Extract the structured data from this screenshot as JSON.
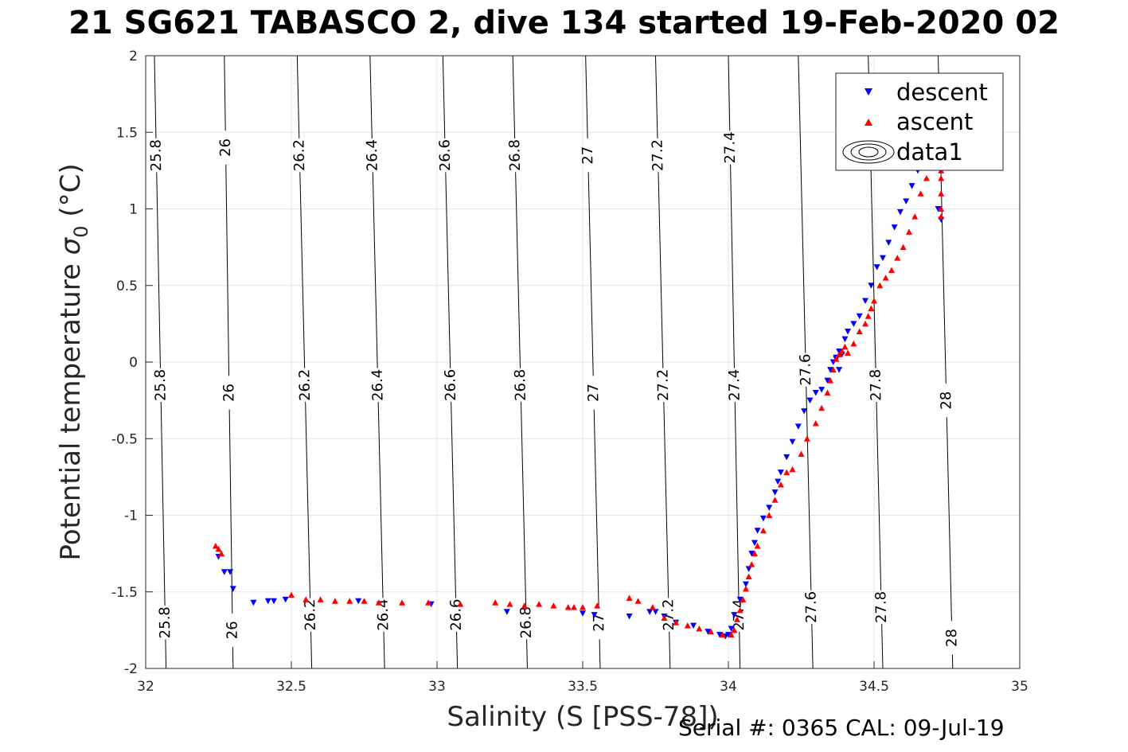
{
  "title": "21 SG621 TABASCO 2, dive 134 started 19-Feb-2020 02",
  "footer": "Serial #: 0365  CAL: 09-Jul-19",
  "chart_data": {
    "type": "scatter",
    "xlabel": "Salinity (S [PSS-78])",
    "ylabel_text": "Potential temperature ",
    "ylabel_symbol": "σ",
    "ylabel_subscript": "0",
    "ylabel_unit": " (°C)",
    "xlim": [
      32,
      35
    ],
    "ylim": [
      -2,
      2
    ],
    "xticks": [
      "32",
      "32.5",
      "33",
      "33.5",
      "34",
      "34.5",
      "35"
    ],
    "yticks": [
      "2",
      "1.5",
      "1",
      "0.5",
      "0",
      "-0.5",
      "-1",
      "-1.5",
      "-2"
    ],
    "grid": true,
    "legend": {
      "placement": "top-right",
      "entries": [
        {
          "name": "descent",
          "color": "#0000ff",
          "marker": "triangle-down"
        },
        {
          "name": "ascent",
          "color": "#ff0000",
          "marker": "triangle-up"
        },
        {
          "name": "data1",
          "color": "#000000",
          "marker": "contour"
        }
      ]
    },
    "contours": {
      "label": "data1",
      "lines": [
        {
          "sigma": "25.8",
          "x_at_ymin": 32.07,
          "x_at_ymax": 32.03,
          "label_ymids": [
            1.35,
            -0.15,
            -1.7
          ]
        },
        {
          "sigma": "26",
          "x_at_ymin": 32.3,
          "x_at_ymax": 32.27,
          "label_ymids": [
            1.4,
            -0.2,
            -1.75
          ]
        },
        {
          "sigma": "26.2",
          "x_at_ymin": 32.57,
          "x_at_ymax": 32.52,
          "label_ymids": [
            1.35,
            -0.15,
            -1.65
          ]
        },
        {
          "sigma": "26.4",
          "x_at_ymin": 32.82,
          "x_at_ymax": 32.77,
          "label_ymids": [
            1.35,
            -0.15,
            -1.65
          ]
        },
        {
          "sigma": "26.6",
          "x_at_ymin": 33.07,
          "x_at_ymax": 33.02,
          "label_ymids": [
            1.35,
            -0.15,
            -1.65
          ]
        },
        {
          "sigma": "26.8",
          "x_at_ymin": 33.31,
          "x_at_ymax": 33.26,
          "label_ymids": [
            1.35,
            -0.15,
            -1.7
          ]
        },
        {
          "sigma": "27",
          "x_at_ymin": 33.56,
          "x_at_ymax": 33.51,
          "label_ymids": [
            1.35,
            -0.2,
            -1.7
          ]
        },
        {
          "sigma": "27.2",
          "x_at_ymin": 33.8,
          "x_at_ymax": 33.75,
          "label_ymids": [
            1.35,
            -0.15,
            -1.65
          ]
        },
        {
          "sigma": "27.4",
          "x_at_ymin": 34.04,
          "x_at_ymax": 34.0,
          "label_ymids": [
            1.4,
            -0.15,
            -1.65
          ]
        },
        {
          "sigma": "27.6",
          "x_at_ymin": 34.29,
          "x_at_ymax": 34.24,
          "label_ymids": [
            -0.05,
            -1.6
          ]
        },
        {
          "sigma": "27.8",
          "x_at_ymin": 34.53,
          "x_at_ymax": 34.48,
          "label_ymids": [
            -0.15,
            -1.6
          ]
        },
        {
          "sigma": "28",
          "x_at_ymin": 34.77,
          "x_at_ymax": 34.72,
          "label_ymids": [
            1.35,
            -0.25,
            -1.8
          ]
        }
      ]
    },
    "series": [
      {
        "name": "descent",
        "color": "#0000ff",
        "x": [
          32.25,
          32.27,
          32.29,
          32.3,
          32.37,
          32.42,
          32.44,
          32.48,
          32.73,
          32.98,
          33.24,
          33.5,
          33.54,
          33.66,
          33.73,
          33.75,
          33.78,
          33.82,
          33.88,
          33.93,
          33.97,
          33.99,
          34.0,
          34.01,
          34.02,
          34.04,
          34.06,
          34.07,
          34.08,
          34.09,
          34.1,
          34.12,
          34.14,
          34.16,
          34.17,
          34.18,
          34.2,
          34.22,
          34.24,
          34.26,
          34.28,
          34.3,
          34.32,
          34.34,
          34.35,
          34.36,
          34.37,
          34.38,
          34.37,
          34.38,
          34.39,
          34.4,
          34.41,
          34.43,
          34.45,
          34.47,
          34.49,
          34.51,
          34.53,
          34.55,
          34.57,
          34.59,
          34.61,
          34.63,
          34.65,
          34.66,
          34.67,
          34.72,
          34.73
        ],
        "y": [
          -1.27,
          -1.37,
          -1.37,
          -1.48,
          -1.57,
          -1.56,
          -1.56,
          -1.55,
          -1.56,
          -1.58,
          -1.63,
          -1.64,
          -1.65,
          -1.66,
          -1.63,
          -1.63,
          -1.66,
          -1.7,
          -1.72,
          -1.76,
          -1.78,
          -1.79,
          -1.78,
          -1.74,
          -1.65,
          -1.55,
          -1.45,
          -1.35,
          -1.25,
          -1.18,
          -1.1,
          -1.02,
          -0.95,
          -0.85,
          -0.78,
          -0.72,
          -0.62,
          -0.52,
          -0.42,
          -0.32,
          -0.25,
          -0.2,
          -0.18,
          -0.12,
          -0.05,
          0.0,
          0.03,
          0.07,
          0.02,
          -0.05,
          0.05,
          0.15,
          0.2,
          0.25,
          0.3,
          0.4,
          0.5,
          0.62,
          0.68,
          0.78,
          0.88,
          0.98,
          1.05,
          1.15,
          1.25,
          1.32,
          1.4,
          1.0,
          0.93
        ]
      },
      {
        "name": "ascent",
        "color": "#ff0000",
        "x": [
          32.24,
          32.25,
          32.26,
          32.5,
          32.55,
          32.6,
          32.65,
          32.7,
          32.75,
          32.8,
          32.88,
          32.97,
          33.08,
          33.2,
          33.25,
          33.3,
          33.35,
          33.4,
          33.45,
          33.47,
          33.5,
          33.55,
          33.66,
          33.69,
          33.74,
          33.78,
          33.82,
          33.86,
          33.9,
          33.94,
          33.98,
          34.01,
          34.02,
          34.03,
          34.04,
          34.05,
          34.06,
          34.07,
          34.08,
          34.09,
          34.1,
          34.12,
          34.14,
          34.16,
          34.18,
          34.2,
          34.22,
          34.25,
          34.27,
          34.3,
          34.32,
          34.34,
          34.35,
          34.36,
          34.37,
          34.38,
          34.39,
          34.4,
          34.41,
          34.43,
          34.45,
          34.47,
          34.48,
          34.49,
          34.5,
          34.52,
          34.54,
          34.56,
          34.58,
          34.6,
          34.62,
          34.64,
          34.66,
          34.68,
          34.7,
          34.73,
          34.73,
          34.73,
          34.73,
          34.73
        ],
        "y": [
          -1.2,
          -1.22,
          -1.25,
          -1.52,
          -1.55,
          -1.55,
          -1.56,
          -1.56,
          -1.56,
          -1.57,
          -1.57,
          -1.57,
          -1.58,
          -1.57,
          -1.58,
          -1.59,
          -1.58,
          -1.59,
          -1.6,
          -1.6,
          -1.6,
          -1.59,
          -1.54,
          -1.56,
          -1.6,
          -1.67,
          -1.7,
          -1.72,
          -1.74,
          -1.76,
          -1.78,
          -1.78,
          -1.75,
          -1.68,
          -1.62,
          -1.55,
          -1.48,
          -1.4,
          -1.32,
          -1.25,
          -1.2,
          -1.1,
          -1.0,
          -0.9,
          -0.8,
          -0.72,
          -0.7,
          -0.6,
          -0.5,
          -0.4,
          -0.3,
          -0.2,
          -0.12,
          -0.05,
          0.02,
          0.05,
          0.07,
          0.1,
          0.06,
          0.12,
          0.2,
          0.25,
          0.3,
          0.35,
          0.4,
          0.5,
          0.55,
          0.6,
          0.68,
          0.75,
          0.85,
          0.95,
          1.1,
          1.2,
          1.3,
          1.2,
          1.1,
          1.0,
          0.95,
          1.25
        ]
      }
    ]
  }
}
